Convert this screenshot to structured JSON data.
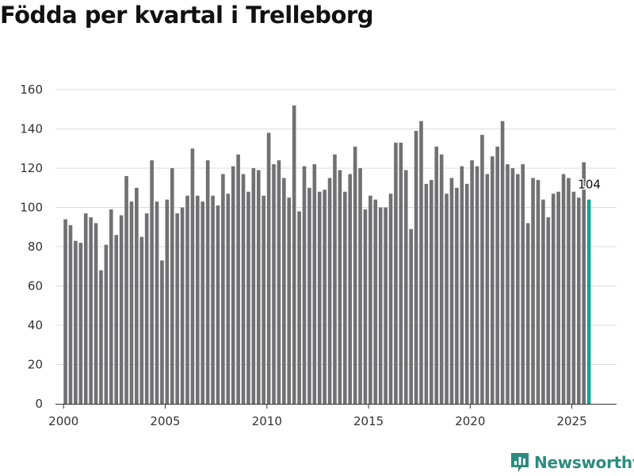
{
  "title": "Födda per kvartal i Trelleborg",
  "brand": {
    "name": "Newsworthy",
    "icon": "newsworthy-logo-icon",
    "color": "#2e8b7f"
  },
  "colors": {
    "bar": "#717073",
    "highlight": "#12a39a",
    "grid": "#dddddd",
    "axis": "#333333"
  },
  "chart_data": {
    "type": "bar",
    "title": "Födda per kvartal i Trelleborg",
    "xlabel": "",
    "ylabel": "",
    "ylim": [
      0,
      160
    ],
    "yticks": [
      0,
      20,
      40,
      60,
      80,
      100,
      120,
      140,
      160
    ],
    "xlim": [
      1999.6,
      2027.2
    ],
    "xticks": [
      2000,
      2005,
      2010,
      2015,
      2020,
      2025
    ],
    "grid": true,
    "start_year": 2000,
    "periods_per_year": 4,
    "highlight_last": true,
    "last_value_label": "104",
    "values": [
      94,
      91,
      83,
      82,
      97,
      95,
      92,
      68,
      81,
      99,
      86,
      96,
      116,
      103,
      110,
      85,
      97,
      124,
      103,
      73,
      104,
      120,
      97,
      100,
      106,
      130,
      106,
      103,
      124,
      106,
      101,
      117,
      107,
      121,
      127,
      117,
      108,
      120,
      119,
      106,
      138,
      122,
      124,
      115,
      105,
      152,
      98,
      121,
      110,
      122,
      108,
      109,
      115,
      127,
      119,
      108,
      117,
      131,
      120,
      99,
      106,
      104,
      100,
      100,
      107,
      133,
      133,
      119,
      89,
      139,
      144,
      112,
      114,
      131,
      127,
      107,
      115,
      110,
      121,
      112,
      124,
      121,
      137,
      117,
      126,
      131,
      144,
      122,
      120,
      117,
      122,
      92,
      115,
      114,
      104,
      95,
      107,
      108,
      117,
      115,
      108,
      105,
      123,
      104
    ]
  }
}
